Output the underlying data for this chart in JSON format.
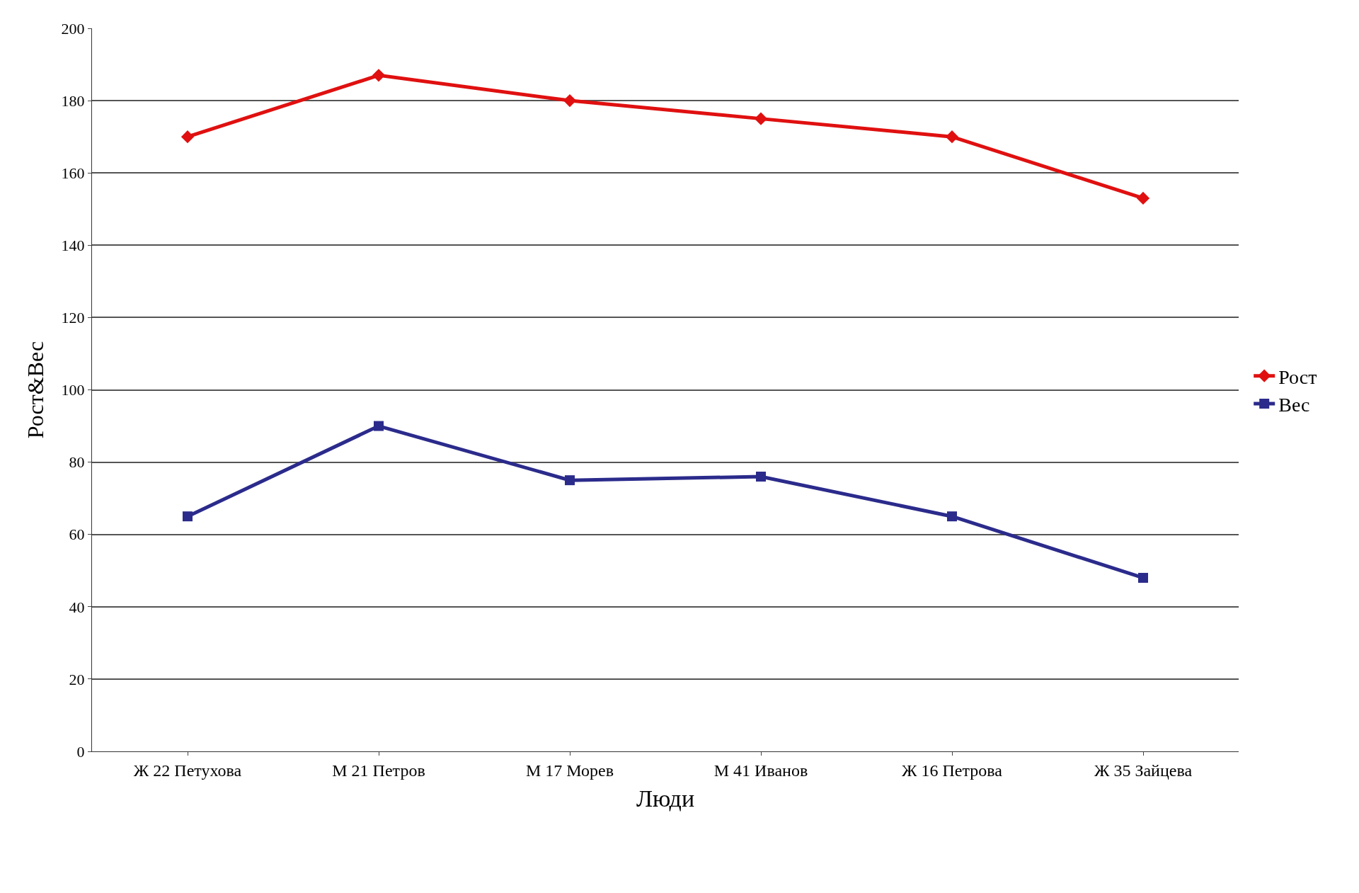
{
  "chart_data": {
    "type": "line",
    "xlabel": "Люди",
    "ylabel": "Рост&Вес",
    "categories": [
      "Ж 22 Петухова",
      "М 21 Петров",
      "М 17 Морев",
      "М 41 Иванов",
      "Ж 16 Петрова",
      "Ж 35 Зайцева"
    ],
    "series": [
      {
        "name": "Рост",
        "color": "#e01010",
        "values": [
          170,
          187,
          180,
          175,
          170,
          153
        ],
        "marker": "diamond"
      },
      {
        "name": "Вес",
        "color": "#2b2b8c",
        "values": [
          65,
          90,
          75,
          76,
          65,
          48
        ],
        "marker": "square"
      }
    ],
    "ylim": [
      0,
      200
    ],
    "yticks": [
      0,
      20,
      40,
      60,
      80,
      100,
      120,
      140,
      160,
      180,
      200
    ],
    "grid": "y",
    "legend": "right",
    "line_style": "solid"
  }
}
